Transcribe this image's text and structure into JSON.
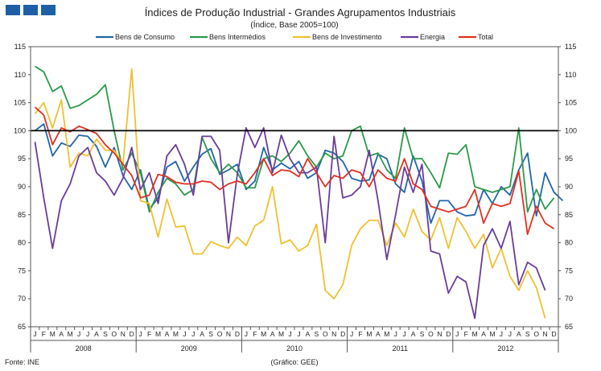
{
  "logo": {
    "colors": [
      "#1f5fa8",
      "#1f5fa8",
      "#1f5fa8"
    ]
  },
  "chart_data": {
    "type": "line",
    "title": "Índices de Produção Industrial - Grandes Agrupamentos Industriais",
    "subtitle": "(Índice, Base 2005=100)",
    "ylim": [
      65,
      115
    ],
    "yticks": [
      65,
      70,
      75,
      80,
      85,
      90,
      95,
      100,
      105,
      110,
      115
    ],
    "reference_line": 100,
    "month_labels": [
      "J",
      "F",
      "M",
      "A",
      "M",
      "J",
      "J",
      "A",
      "S",
      "O",
      "N",
      "D"
    ],
    "years": [
      "2008",
      "2009",
      "2010",
      "2011",
      "2012"
    ],
    "legend_position": "top",
    "series": [
      {
        "name": "Bens de Consumo",
        "color": "#2166a8",
        "values": [
          100,
          101.2,
          95.5,
          97.8,
          97.2,
          99.2,
          99,
          97.2,
          93.5,
          97,
          92,
          89.5,
          93,
          86,
          88,
          93.5,
          94.5,
          91,
          93.5,
          95.8,
          96.8,
          92.2,
          93,
          94,
          89.5,
          91,
          97,
          93,
          94.2,
          93.2,
          94.5,
          91.5,
          92.5,
          96.5,
          96,
          94.5,
          91.5,
          91,
          91.2,
          95.8,
          95,
          90.5,
          89,
          95.5,
          91,
          83.5,
          87.5,
          87.5,
          85.5,
          84.8,
          85,
          89.5,
          87,
          90,
          88.5,
          93,
          96,
          84.8,
          92.5,
          89,
          87.5
        ]
      },
      {
        "name": "Bens Intermédios",
        "color": "#2a9a4a",
        "values": [
          111.5,
          110.5,
          107,
          108,
          104,
          104.5,
          105.5,
          106.5,
          108.2,
          100,
          93,
          96,
          92.5,
          85.5,
          89,
          91.5,
          90.5,
          88.5,
          89.5,
          98.8,
          95,
          92.5,
          94,
          92.5,
          89.8,
          89.8,
          95,
          95.5,
          94.5,
          96,
          98.2,
          95.5,
          93.5,
          96,
          95,
          95.5,
          100,
          100.8,
          95.5,
          96,
          93,
          91.5,
          100.5,
          95,
          95,
          92.5,
          89.8,
          96,
          95.8,
          97.5,
          90,
          89.5,
          89,
          89.5,
          90,
          100.5,
          85.5,
          89.5,
          86,
          88
        ]
      },
      {
        "name": "Bens de Investimento",
        "color": "#f0c030",
        "values": [
          103,
          105,
          100.5,
          105.5,
          93.5,
          96,
          95.5,
          98.5,
          96.5,
          96.5,
          94,
          111,
          87.5,
          87,
          81,
          87.8,
          82.8,
          83,
          78,
          78,
          80.2,
          79.5,
          79,
          81,
          79.5,
          83,
          84,
          90,
          79.8,
          80.5,
          78.5,
          79.5,
          83.3,
          71.5,
          70,
          72.5,
          79.5,
          82.5,
          84,
          84,
          79.5,
          83.5,
          81,
          86,
          82,
          80.5,
          84.5,
          79,
          84.5,
          82,
          79,
          81.5,
          75.5,
          79,
          74,
          71.5,
          75,
          72,
          66.5
        ]
      },
      {
        "name": "Energia",
        "color": "#6a3d9a",
        "values": [
          98,
          88,
          79,
          87.5,
          90.5,
          95.5,
          97,
          92.5,
          91,
          88.5,
          91.5,
          97,
          89.5,
          92.5,
          87,
          95.5,
          97.5,
          94,
          88.5,
          99,
          99,
          96.5,
          80,
          92.2,
          100.5,
          97,
          100.5,
          92.5,
          99.2,
          95,
          92.5,
          92.5,
          93.5,
          80,
          99,
          88,
          88.5,
          90,
          96.5,
          87.5,
          77,
          85,
          93.5,
          89,
          94,
          78.5,
          78,
          71,
          74,
          73,
          66.5,
          79.5,
          82.5,
          79,
          83.8,
          72.5,
          76.5,
          75.5,
          71.5
        ]
      },
      {
        "name": "Total",
        "color": "#e03020",
        "values": [
          104.2,
          102.8,
          97.5,
          100.5,
          99.8,
          100.8,
          100.2,
          99.5,
          97.5,
          96,
          94,
          92,
          88,
          88.5,
          92.2,
          91.8,
          90.8,
          90.5,
          90.5,
          91,
          90.8,
          89.5,
          90.5,
          91,
          90.5,
          92.5,
          95,
          92,
          93,
          92.8,
          91.8,
          95,
          92.5,
          90,
          92,
          91.5,
          93,
          92.5,
          90,
          93,
          91.5,
          91,
          95,
          90.5,
          89.5,
          86.5,
          86,
          85.5,
          86,
          86.5,
          89.5,
          83.5,
          87,
          86.5,
          87,
          92.8,
          81.5,
          86.5,
          83.5,
          82.5
        ]
      }
    ]
  },
  "footer": {
    "source": "Fonte: INE",
    "credit": "(Gráfico: GEE)"
  }
}
